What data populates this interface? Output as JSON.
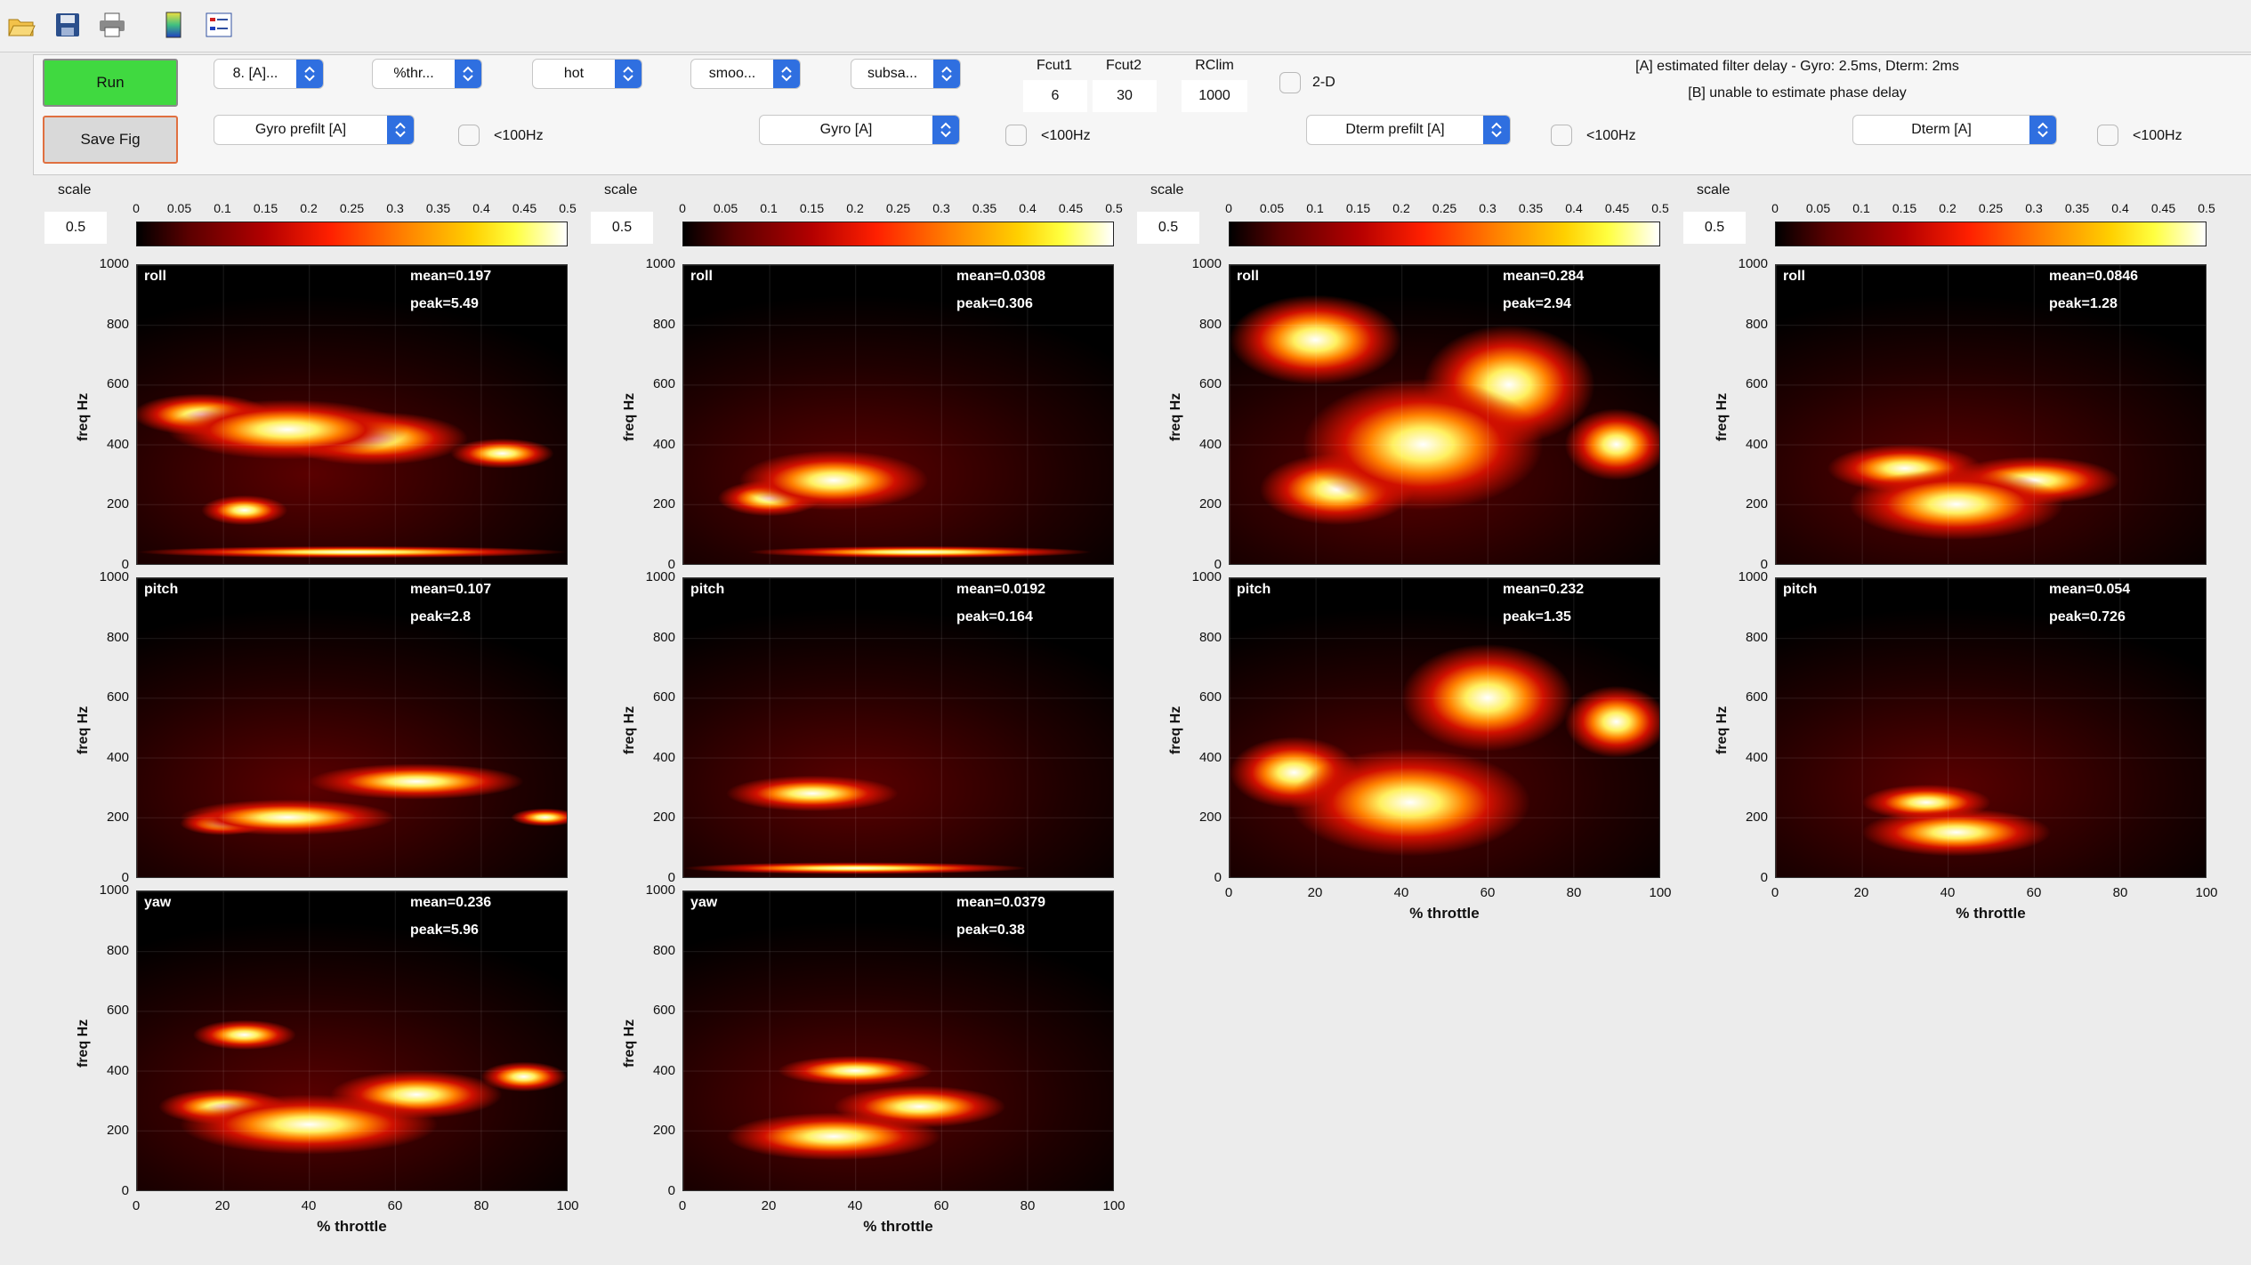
{
  "toolbar": {
    "icons": [
      "folder-open-icon",
      "save-disk-icon",
      "print-icon",
      "colorbar-icon",
      "legend-icon"
    ]
  },
  "controls": {
    "run_label": "Run",
    "save_fig_label": "Save Fig",
    "popups_row1": [
      "8. [A]...",
      "%thr...",
      "hot",
      "smoo...",
      "subsa..."
    ],
    "popups_row2": [
      "Gyro prefilt [A]",
      "Gyro [A]",
      "Dterm prefilt [A]",
      "Dterm [A]"
    ],
    "lt100_label": "<100Hz",
    "fcut1_label": "Fcut1",
    "fcut1_value": "6",
    "fcut2_label": "Fcut2",
    "fcut2_value": "30",
    "rclim_label": "RClim",
    "rclim_value": "1000",
    "twod_label": "2-D",
    "status_line1": "[A] estimated filter delay - Gyro: 2.5ms, Dterm: 2ms",
    "status_line2": "[B] unable to estimate phase delay"
  },
  "colorbar": {
    "scale_label": "scale",
    "scale_value": "0.5",
    "ticks": [
      "0",
      "0.05",
      "0.1",
      "0.15",
      "0.2",
      "0.25",
      "0.3",
      "0.35",
      "0.4",
      "0.45",
      "0.5"
    ],
    "colormap": "hot"
  },
  "axes": {
    "ylabel": "freq Hz",
    "xlabel": "% throttle",
    "yticks": [
      "1000",
      "800",
      "600",
      "400",
      "200",
      "0"
    ],
    "xticks": [
      "0",
      "20",
      "40",
      "60",
      "80",
      "100"
    ]
  },
  "columns": [
    {
      "plots": [
        {
          "axis": "roll",
          "mean": "mean=0.197",
          "peak": "peak=5.49"
        },
        {
          "axis": "pitch",
          "mean": "mean=0.107",
          "peak": "peak=2.8"
        },
        {
          "axis": "yaw",
          "mean": "mean=0.236",
          "peak": "peak=5.96"
        }
      ]
    },
    {
      "plots": [
        {
          "axis": "roll",
          "mean": "mean=0.0308",
          "peak": "peak=0.306"
        },
        {
          "axis": "pitch",
          "mean": "mean=0.0192",
          "peak": "peak=0.164"
        },
        {
          "axis": "yaw",
          "mean": "mean=0.0379",
          "peak": "peak=0.38"
        }
      ]
    },
    {
      "plots": [
        {
          "axis": "roll",
          "mean": "mean=0.284",
          "peak": "peak=2.94"
        },
        {
          "axis": "pitch",
          "mean": "mean=0.232",
          "peak": "peak=1.35"
        }
      ]
    },
    {
      "plots": [
        {
          "axis": "roll",
          "mean": "mean=0.0846",
          "peak": "peak=1.28"
        },
        {
          "axis": "pitch",
          "mean": "mean=0.054",
          "peak": "peak=0.726"
        }
      ]
    }
  ]
}
